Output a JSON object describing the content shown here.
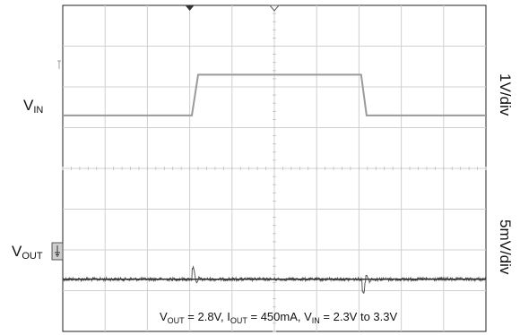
{
  "chart_data": {
    "type": "line",
    "grid": true,
    "x_divisions": 10,
    "y_divisions": 8,
    "title": "",
    "xlabel": "",
    "series": [
      {
        "name": "V_IN",
        "label_main": "V",
        "label_sub": "IN",
        "scale": "1V/div",
        "color": "#9a9a9a",
        "baseline_div": 2.7,
        "points": [
          [
            0,
            0
          ],
          [
            3.05,
            0
          ],
          [
            3.2,
            1.0
          ],
          [
            7.05,
            1.0
          ],
          [
            7.18,
            0
          ],
          [
            10,
            0
          ]
        ]
      },
      {
        "name": "V_OUT",
        "label_main": "V",
        "label_sub": "OUT",
        "scale": "5mV/div",
        "color": "#555555",
        "baseline_div": 6.72,
        "noise_div": 0.04,
        "transients": [
          {
            "x": 3.1,
            "amplitude_div": -0.28
          },
          {
            "x": 7.12,
            "amplitude_div": 0.3
          }
        ]
      }
    ],
    "annotation": {
      "parts": [
        {
          "t": "V"
        },
        {
          "t": "OUT",
          "sub": true
        },
        {
          "t": " = 2.8V, I"
        },
        {
          "t": "OUT",
          "sub": true
        },
        {
          "t": " = 450mA, V"
        },
        {
          "t": "IN",
          "sub": true
        },
        {
          "t": " = 2.3V to 3.3V"
        }
      ]
    },
    "markers": {
      "top_solid_x": 3.0,
      "top_hollow_x": 5.0
    }
  }
}
